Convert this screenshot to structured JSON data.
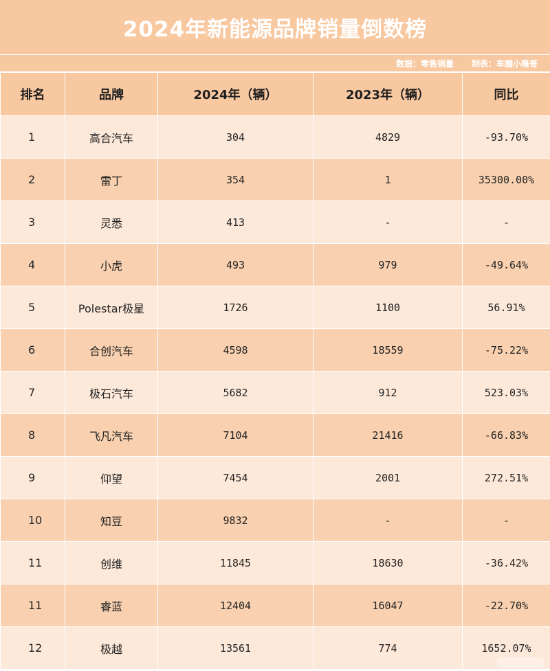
{
  "title": "2024年新能源品牌销量倒数榜",
  "source": {
    "data": "数据：零售销量",
    "maker": "制表：车圈小隆哥"
  },
  "headers": {
    "rank": "排名",
    "brand": "品牌",
    "y2024": "2024年（辆）",
    "y2023": "2023年（辆）",
    "yoy": "同比"
  },
  "rows": [
    {
      "rank": "1",
      "brand": "高合汽车",
      "y2024": "304",
      "y2023": "4829",
      "yoy": "-93.70%"
    },
    {
      "rank": "2",
      "brand": "雷丁",
      "y2024": "354",
      "y2023": "1",
      "yoy": "35300.00%"
    },
    {
      "rank": "3",
      "brand": "灵悉",
      "y2024": "413",
      "y2023": "-",
      "yoy": "-"
    },
    {
      "rank": "4",
      "brand": "小虎",
      "y2024": "493",
      "y2023": "979",
      "yoy": "-49.64%"
    },
    {
      "rank": "5",
      "brand": "Polestar极星",
      "y2024": "1726",
      "y2023": "1100",
      "yoy": "56.91%"
    },
    {
      "rank": "6",
      "brand": "合创汽车",
      "y2024": "4598",
      "y2023": "18559",
      "yoy": "-75.22%"
    },
    {
      "rank": "7",
      "brand": "极石汽车",
      "y2024": "5682",
      "y2023": "912",
      "yoy": "523.03%"
    },
    {
      "rank": "8",
      "brand": "飞凡汽车",
      "y2024": "7104",
      "y2023": "21416",
      "yoy": "-66.83%"
    },
    {
      "rank": "9",
      "brand": "仰望",
      "y2024": "7454",
      "y2023": "2001",
      "yoy": "272.51%"
    },
    {
      "rank": "10",
      "brand": "知豆",
      "y2024": "9832",
      "y2023": "-",
      "yoy": "-"
    },
    {
      "rank": "11",
      "brand": "创维",
      "y2024": "11845",
      "y2023": "18630",
      "yoy": "-36.42%"
    },
    {
      "rank": "11",
      "brand": "睿蓝",
      "y2024": "12404",
      "y2023": "16047",
      "yoy": "-22.70%"
    },
    {
      "rank": "12",
      "brand": "极越",
      "y2024": "13561",
      "y2023": "774",
      "yoy": "1652.07%"
    }
  ],
  "colors": {
    "header": "#f8c8a0",
    "row_light": "#fde9da",
    "row_dark": "#f9d1b0"
  }
}
